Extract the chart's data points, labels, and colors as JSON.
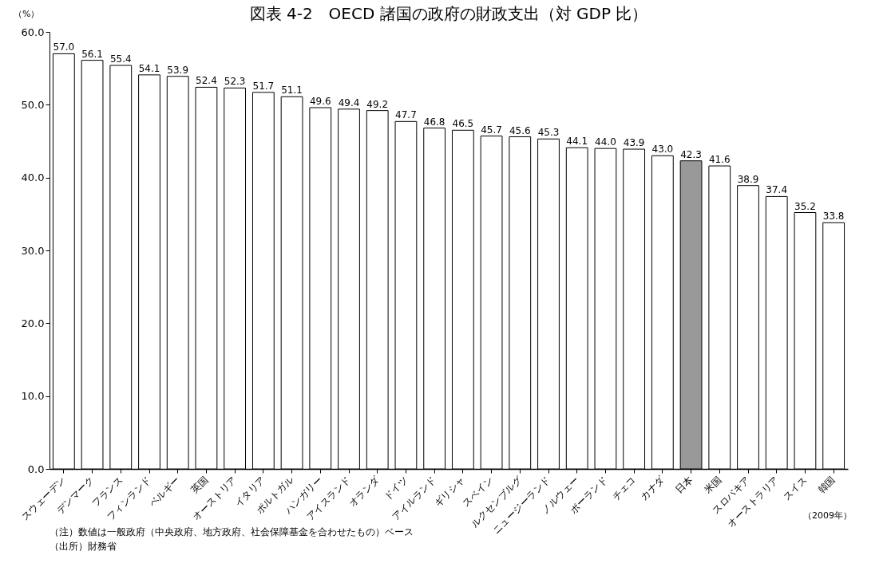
{
  "chart_data": {
    "type": "bar",
    "title": "図表 4-2　OECD 諸国の政府の財政支出（対 GDP 比）",
    "ylabel": "（%）",
    "categories": [
      "スウェーデン",
      "デンマーク",
      "フランス",
      "フィンランド",
      "ベルギー",
      "英国",
      "オーストリア",
      "イタリア",
      "ポルトガル",
      "ハンガリー",
      "アイスランド",
      "オランダ",
      "ドイツ",
      "アイルランド",
      "ギリシャ",
      "スペイン",
      "ルクセンブルグ",
      "ニュージーランド",
      "ノルウェー",
      "ポーランド",
      "チェコ",
      "カナダ",
      "日本",
      "米国",
      "スロバキア",
      "オーストラリア",
      "スイス",
      "韓国"
    ],
    "values": [
      57.0,
      56.1,
      55.4,
      54.1,
      53.9,
      52.4,
      52.3,
      51.7,
      51.1,
      49.6,
      49.4,
      49.2,
      47.7,
      46.8,
      46.5,
      45.7,
      45.6,
      45.3,
      44.1,
      44.0,
      43.9,
      43.0,
      42.3,
      41.6,
      38.9,
      37.4,
      35.2,
      33.8
    ],
    "colors": [
      "#ffffff",
      "#ffffff",
      "#ffffff",
      "#ffffff",
      "#ffffff",
      "#ffffff",
      "#ffffff",
      "#ffffff",
      "#ffffff",
      "#ffffff",
      "#ffffff",
      "#ffffff",
      "#ffffff",
      "#ffffff",
      "#ffffff",
      "#ffffff",
      "#ffffff",
      "#ffffff",
      "#ffffff",
      "#ffffff",
      "#ffffff",
      "#ffffff",
      "#999999",
      "#ffffff",
      "#ffffff",
      "#ffffff",
      "#ffffff",
      "#ffffff"
    ],
    "value_labels": [
      "57.0",
      "56.1",
      "55.4",
      "54.1",
      "53.9",
      "52.4",
      "52.3",
      "51.7",
      "51.1",
      "49.6",
      "49.4",
      "49.2",
      "47.7",
      "46.8",
      "46.5",
      "45.7",
      "45.6",
      "45.3",
      "44.1",
      "44.0",
      "43.9",
      "43.0",
      "42.3",
      "41.6",
      "38.9",
      "37.4",
      "35.2",
      "33.8"
    ],
    "ylim": [
      0,
      60
    ],
    "yticks": [
      {
        "value": 0,
        "label": "0.0"
      },
      {
        "value": 10,
        "label": "10.0"
      },
      {
        "value": 20,
        "label": "20.0"
      },
      {
        "value": 30,
        "label": "30.0"
      },
      {
        "value": 40,
        "label": "40.0"
      },
      {
        "value": 50,
        "label": "50.0"
      },
      {
        "value": 60,
        "label": "60.0"
      }
    ],
    "grid": false,
    "annotations": [
      "（2009年）",
      "（注）数値は一般政府（中央政府、地方政府、社会保障基金を合わせたもの）ベース",
      "（出所）財務省"
    ]
  }
}
